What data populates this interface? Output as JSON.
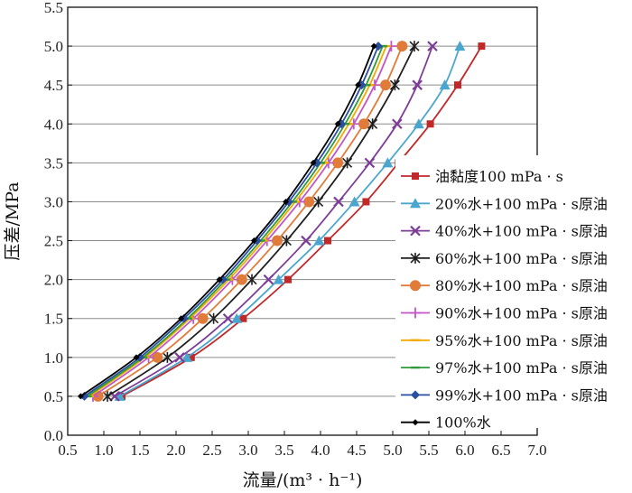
{
  "chart_data": {
    "type": "line",
    "xlabel": "流量/(m³ · h⁻¹)",
    "ylabel": "压差/MPa",
    "xlim": [
      0.5,
      7.0
    ],
    "ylim": [
      0.0,
      5.5
    ],
    "xticks": [
      "0.5",
      "1.0",
      "1.5",
      "2.0",
      "2.5",
      "3.0",
      "3.5",
      "4.0",
      "4.5",
      "5.0",
      "5.5",
      "6.0",
      "6.5",
      "7.0"
    ],
    "yticks": [
      "0.0",
      "0.5",
      "1.0",
      "1.5",
      "2.0",
      "2.5",
      "3.0",
      "3.5",
      "4.0",
      "4.5",
      "5.0",
      "5.5"
    ],
    "grid": "horizontal",
    "legend_position": "right",
    "y_values": [
      0.5,
      1.0,
      1.5,
      2.0,
      2.5,
      3.0,
      3.5,
      4.0,
      4.5,
      5.0
    ],
    "series": [
      {
        "name": "油黏度100 mPa · s",
        "color": "#c0282a",
        "marker": "square",
        "x": [
          1.25,
          2.21,
          2.93,
          3.55,
          4.1,
          4.63,
          5.08,
          5.52,
          5.9,
          6.23
        ]
      },
      {
        "name": "20%水+100 mPa · s原油",
        "color": "#4aa6cf",
        "marker": "triangle",
        "x": [
          1.22,
          2.15,
          2.84,
          3.42,
          3.98,
          4.47,
          4.93,
          5.36,
          5.72,
          5.93
        ]
      },
      {
        "name": "40%水+100 mPa · s原油",
        "color": "#7d3c98",
        "marker": "x",
        "x": [
          1.15,
          2.05,
          2.72,
          3.28,
          3.8,
          4.25,
          4.68,
          5.06,
          5.34,
          5.55
        ]
      },
      {
        "name": "60%水+100 mPa · s原油",
        "color": "#1f1f1f",
        "marker": "asterisk",
        "x": [
          1.05,
          1.88,
          2.52,
          3.05,
          3.53,
          3.97,
          4.37,
          4.72,
          5.03,
          5.3
        ]
      },
      {
        "name": "80%水+100 mPa · s原油",
        "color": "#e07b39",
        "marker": "circle",
        "x": [
          0.92,
          1.74,
          2.37,
          2.91,
          3.4,
          3.84,
          4.24,
          4.6,
          4.9,
          5.13
        ]
      },
      {
        "name": "90%水+100 mPa · s原油",
        "color": "#c057c4",
        "marker": "plus",
        "x": [
          0.85,
          1.62,
          2.24,
          2.78,
          3.26,
          3.71,
          4.11,
          4.46,
          4.75,
          4.98
        ]
      },
      {
        "name": "95%水+100 mPa · s原油",
        "color": "#f2a900",
        "marker": "dash",
        "x": [
          0.8,
          1.57,
          2.19,
          2.73,
          3.21,
          3.65,
          4.05,
          4.39,
          4.68,
          4.91
        ]
      },
      {
        "name": "97%水+100 mPa · s原油",
        "color": "#2e9a3a",
        "marker": "dash",
        "x": [
          0.77,
          1.54,
          2.16,
          2.69,
          3.17,
          3.61,
          4.0,
          4.34,
          4.63,
          4.86
        ]
      },
      {
        "name": "99%水+100 mPa · s原油",
        "color": "#2a4fa0",
        "marker": "diamond",
        "x": [
          0.73,
          1.5,
          2.11,
          2.65,
          3.12,
          3.56,
          3.95,
          4.29,
          4.57,
          4.8
        ]
      },
      {
        "name": "100%水",
        "color": "#000000",
        "marker": "smalldiamond",
        "x": [
          0.68,
          1.45,
          2.07,
          2.6,
          3.08,
          3.52,
          3.9,
          4.24,
          4.52,
          4.74
        ]
      }
    ]
  }
}
